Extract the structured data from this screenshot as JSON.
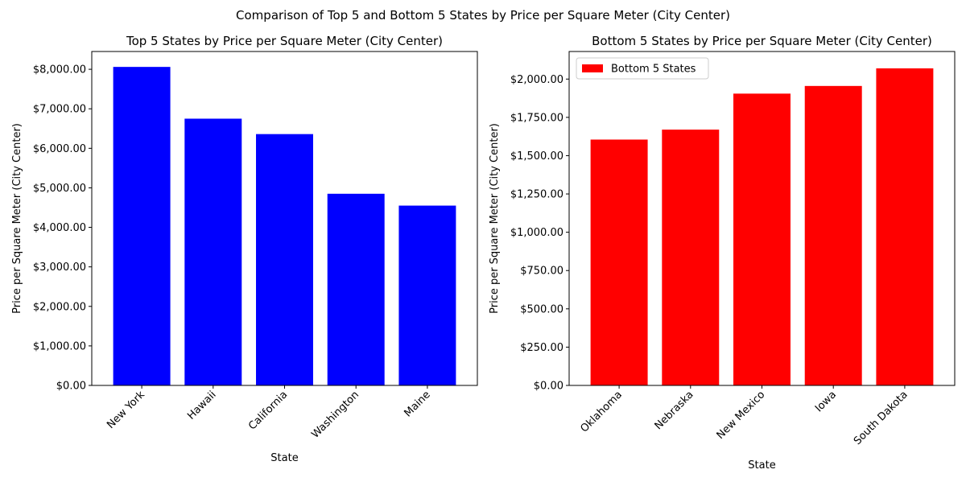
{
  "figure": {
    "suptitle": "Comparison of Top 5 and Bottom 5 States by Price per Square Meter (City Center)"
  },
  "chart_data": [
    {
      "type": "bar",
      "title": "Top 5 States by Price per Square Meter (City Center)",
      "xlabel": "State",
      "ylabel": "Price per Square Meter (City Center)",
      "categories": [
        "New York",
        "Hawaii",
        "California",
        "Washington",
        "Maine"
      ],
      "values": [
        8060,
        6750,
        6360,
        4850,
        4550
      ],
      "ylim": [
        0,
        8450
      ],
      "yticks": [
        0,
        1000,
        2000,
        3000,
        4000,
        5000,
        6000,
        7000,
        8000
      ],
      "ytick_labels": [
        "$0.00",
        "$1,000.00",
        "$2,000.00",
        "$3,000.00",
        "$4,000.00",
        "$5,000.00",
        "$6,000.00",
        "$7,000.00",
        "$8,000.00"
      ],
      "color": "#0000ff",
      "legend": null
    },
    {
      "type": "bar",
      "title": "Bottom 5 States by Price per Square Meter (City Center)",
      "xlabel": "State",
      "ylabel": "Price per Square Meter (City Center)",
      "categories": [
        "Oklahoma",
        "Nebraska",
        "New Mexico",
        "Iowa",
        "South Dakota"
      ],
      "values": [
        1605,
        1670,
        1905,
        1955,
        2070
      ],
      "ylim": [
        0,
        2180
      ],
      "yticks": [
        0,
        250,
        500,
        750,
        1000,
        1250,
        1500,
        1750,
        2000
      ],
      "ytick_labels": [
        "$0.00",
        "$250.00",
        "$500.00",
        "$750.00",
        "$1,000.00",
        "$1,250.00",
        "$1,500.00",
        "$1,750.00",
        "$2,000.00"
      ],
      "color": "#ff0000",
      "legend": {
        "label": "Bottom 5 States",
        "placement": "top-left"
      }
    }
  ]
}
